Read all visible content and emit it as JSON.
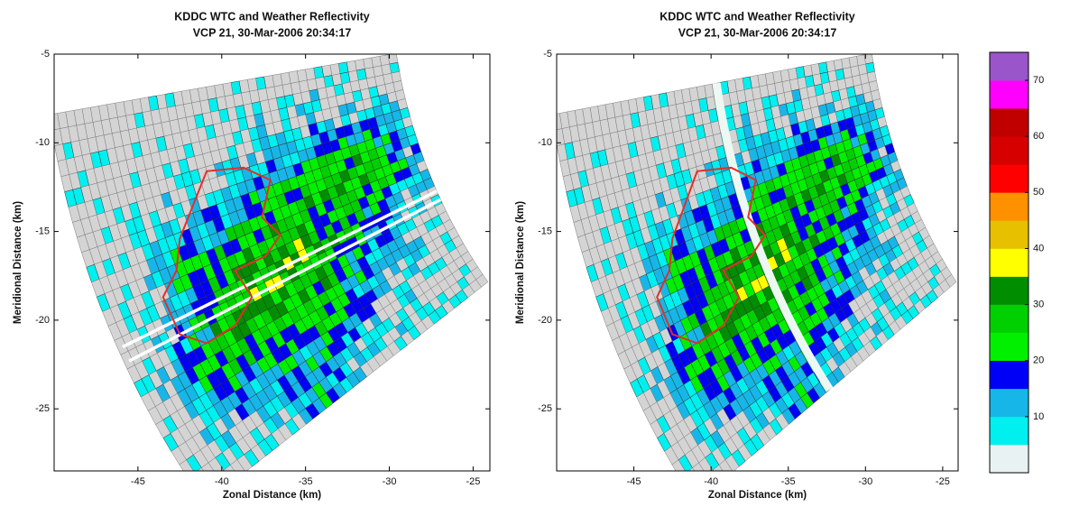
{
  "chart_data": [
    {
      "type": "radar",
      "title": "KDDC WTC and Weather Reflectivity",
      "subtitle": "VCP 21,  30-Mar-2006 20:34:17",
      "xlabel": "Zonal Distance (km)",
      "ylabel": "Meridional Distance (km)",
      "xlim": [
        -50,
        -24
      ],
      "ylim": [
        -28.5,
        -5
      ],
      "xticks": [
        -45,
        -40,
        -35,
        -30,
        -25
      ],
      "yticks": [
        -25,
        -20,
        -15,
        -10,
        -5
      ]
    },
    {
      "type": "radar",
      "title": "KDDC WTC and Weather Reflectivity",
      "subtitle": "VCP 21,  30-Mar-2006 20:34:17",
      "xlabel": "Zonal Distance (km)",
      "ylabel": "Meridional Distance (km)",
      "xlim": [
        -50,
        -24
      ],
      "ylim": [
        -28.5,
        -5
      ],
      "xticks": [
        -45,
        -40,
        -35,
        -30,
        -25
      ],
      "yticks": [
        -25,
        -20,
        -15,
        -10,
        -5
      ]
    },
    {
      "type": "colorbar",
      "ylim": [
        0,
        75
      ],
      "yticks": [
        10,
        20,
        30,
        40,
        50,
        60,
        70
      ],
      "colors": [
        "#e9f2f2",
        "#00efef",
        "#16b7e8",
        "#0000f6",
        "#00f000",
        "#00d000",
        "#008e00",
        "#ffff00",
        "#e7c000",
        "#ff9000",
        "#ff0000",
        "#d60000",
        "#c00000",
        "#ff00ff",
        "#9955c9"
      ]
    }
  ]
}
